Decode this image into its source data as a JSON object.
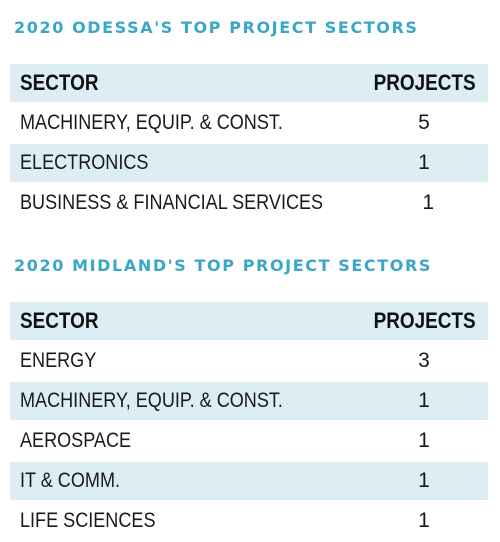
{
  "chart_data": [
    {
      "type": "table",
      "title": "2020 ODESSA'S TOP PROJECT SECTORS",
      "columns": [
        "SECTOR",
        "PROJECTS"
      ],
      "rows": [
        {
          "sector": "MACHINERY, EQUIP. & CONST.",
          "projects": "5"
        },
        {
          "sector": "ELECTRONICS",
          "projects": "1"
        },
        {
          "sector": "BUSINESS & FINANCIAL SERVICES",
          "projects": "1"
        }
      ]
    },
    {
      "type": "table",
      "title": "2020 MIDLAND'S TOP PROJECT SECTORS",
      "columns": [
        "SECTOR",
        "PROJECTS"
      ],
      "rows": [
        {
          "sector": "ENERGY",
          "projects": "3"
        },
        {
          "sector": "MACHINERY, EQUIP. & CONST.",
          "projects": "1"
        },
        {
          "sector": "AEROSPACE",
          "projects": "1"
        },
        {
          "sector": "IT & COMM.",
          "projects": "1"
        },
        {
          "sector": "LIFE SCIENCES",
          "projects": "1"
        }
      ]
    }
  ],
  "colors": {
    "title": "#3aa7c7",
    "shaded_row": "#dcedf4",
    "text": "#1a1a1a"
  }
}
